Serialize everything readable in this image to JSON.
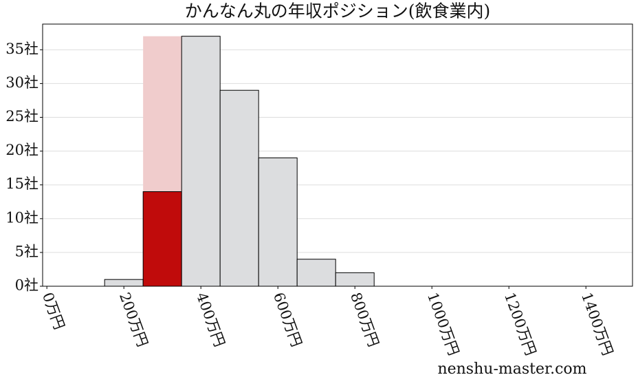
{
  "chart_data": {
    "type": "histogram",
    "title": "かんなん丸の年収ポジション(飲食業内)",
    "bins": [
      150,
      250,
      350,
      450,
      550,
      650,
      750,
      850
    ],
    "values": [
      1,
      14,
      37,
      29,
      19,
      4,
      2
    ],
    "colors": [
      "#dcdddf",
      "#c00b0b",
      "#dcdddf",
      "#dcdddf",
      "#dcdddf",
      "#dcdddf",
      "#dcdddf"
    ],
    "highlight": {
      "bin": 1,
      "value": 37,
      "color": "#f0cccc"
    },
    "xlim": [
      -11,
      1521
    ],
    "xticks": [
      {
        "value": 0,
        "label": "0万円"
      },
      {
        "value": 200,
        "label": "200万円"
      },
      {
        "value": 400,
        "label": "400万円"
      },
      {
        "value": 600,
        "label": "600万円"
      },
      {
        "value": 800,
        "label": "800万円"
      },
      {
        "value": 1000,
        "label": "1000万円"
      },
      {
        "value": 1200,
        "label": "1200万円"
      },
      {
        "value": 1400,
        "label": "1400万円"
      }
    ],
    "ylim": [
      0,
      38.8
    ],
    "yticks": [
      {
        "value": 0,
        "label": "0社"
      },
      {
        "value": 5,
        "label": "5社"
      },
      {
        "value": 10,
        "label": "10社"
      },
      {
        "value": 15,
        "label": "15社"
      },
      {
        "value": 20,
        "label": "20社"
      },
      {
        "value": 25,
        "label": "25社"
      },
      {
        "value": 30,
        "label": "30社"
      },
      {
        "value": 35,
        "label": "35社"
      }
    ],
    "grid": true,
    "watermark": "nenshu-master.com"
  }
}
